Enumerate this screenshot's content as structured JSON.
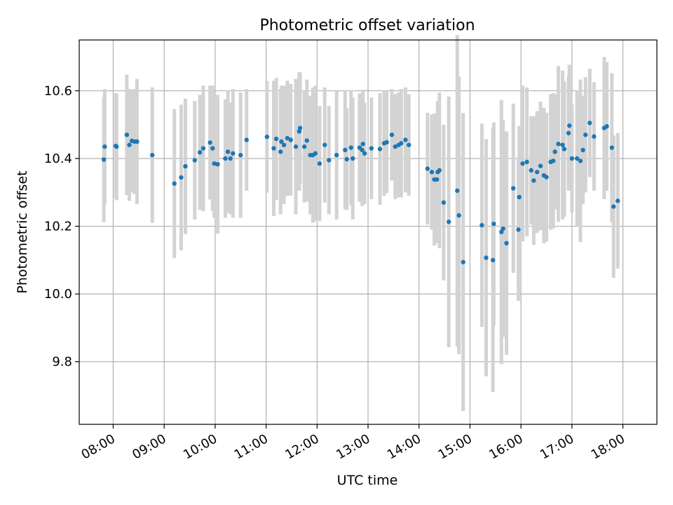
{
  "chart_data": {
    "type": "scatter",
    "title": "Photometric offset variation",
    "xlabel": "UTC time",
    "ylabel": "Photometric offset",
    "x_ticks": [
      "08:00",
      "09:00",
      "10:00",
      "11:00",
      "12:00",
      "13:00",
      "14:00",
      "15:00",
      "16:00",
      "17:00",
      "18:00"
    ],
    "y_ticks": [
      "9.8",
      "10.0",
      "10.2",
      "10.4",
      "10.6"
    ],
    "xlim": [
      "07:20",
      "18:40"
    ],
    "ylim": [
      9.615,
      10.75
    ],
    "grid": true,
    "colors": {
      "points": "#1f77b4",
      "error_bars": "#d3d3d3",
      "grid": "#b0b0b0"
    },
    "series": [
      {
        "x": [
          "07:49",
          "07:50",
          "08:03",
          "08:04",
          "08:16",
          "08:19",
          "08:22",
          "08:25",
          "08:28",
          "08:46",
          "09:12",
          "09:20",
          "09:25",
          "09:36",
          "09:42",
          "09:46",
          "09:54",
          "09:57",
          "09:59",
          "10:03",
          "10:12",
          "10:15",
          "10:18",
          "10:21",
          "10:30",
          "10:37",
          "11:01",
          "11:09",
          "11:12",
          "11:17",
          "11:18",
          "11:21",
          "11:25",
          "11:29",
          "11:35",
          "11:39",
          "11:40",
          "11:45",
          "11:48",
          "11:52",
          "11:55",
          "11:58",
          "12:03",
          "12:09",
          "12:14",
          "12:23",
          "12:33",
          "12:35",
          "12:40",
          "12:42",
          "12:50",
          "12:53",
          "12:54",
          "12:56",
          "13:04",
          "13:14",
          "13:19",
          "13:22",
          "13:28",
          "13:32",
          "13:36",
          "13:39",
          "13:44",
          "13:48",
          "14:10",
          "14:15",
          "14:18",
          "14:21",
          "14:22",
          "14:24",
          "14:29",
          "14:35",
          "14:45",
          "14:47",
          "14:52",
          "15:14",
          "15:19",
          "15:27",
          "15:28",
          "15:37",
          "15:39",
          "15:43",
          "15:51",
          "15:57",
          "15:58",
          "16:02",
          "16:07",
          "16:12",
          "16:15",
          "16:19",
          "16:23",
          "16:27",
          "16:30",
          "16:35",
          "16:38",
          "16:40",
          "16:44",
          "16:49",
          "16:51",
          "16:56",
          "16:57",
          "17:00",
          "17:06",
          "17:10",
          "17:13",
          "17:16",
          "17:21",
          "17:26",
          "17:38",
          "17:41",
          "17:47",
          "17:49",
          "17:54"
        ],
        "y": [
          10.397,
          10.435,
          10.437,
          10.435,
          10.47,
          10.44,
          10.452,
          10.45,
          10.45,
          10.41,
          10.326,
          10.344,
          10.377,
          10.395,
          10.418,
          10.43,
          10.447,
          10.43,
          10.385,
          10.383,
          10.4,
          10.42,
          10.4,
          10.415,
          10.41,
          10.455,
          10.464,
          10.43,
          10.458,
          10.42,
          10.45,
          10.44,
          10.46,
          10.455,
          10.435,
          10.48,
          10.49,
          10.435,
          10.453,
          10.41,
          10.41,
          10.415,
          10.385,
          10.44,
          10.395,
          10.41,
          10.425,
          10.398,
          10.432,
          10.4,
          10.432,
          10.425,
          10.443,
          10.415,
          10.43,
          10.428,
          10.445,
          10.448,
          10.47,
          10.435,
          10.44,
          10.445,
          10.455,
          10.44,
          10.37,
          10.36,
          10.338,
          10.338,
          10.36,
          10.365,
          10.27,
          10.213,
          10.305,
          10.232,
          10.094,
          10.203,
          10.107,
          10.1,
          10.207,
          10.183,
          10.193,
          10.15,
          10.312,
          10.19,
          10.286,
          10.385,
          10.39,
          10.365,
          10.335,
          10.36,
          10.378,
          10.35,
          10.345,
          10.39,
          10.393,
          10.42,
          10.443,
          10.44,
          10.428,
          10.475,
          10.497,
          10.4,
          10.4,
          10.393,
          10.425,
          10.47,
          10.505,
          10.465,
          10.49,
          10.495,
          10.432,
          10.258,
          10.275
        ],
        "yerr": [
          0.185,
          0.17,
          0.155,
          0.158,
          0.178,
          0.165,
          0.152,
          0.155,
          0.185,
          0.2,
          0.22,
          0.215,
          0.2,
          0.175,
          0.17,
          0.185,
          0.168,
          0.185,
          0.16,
          0.205,
          0.175,
          0.18,
          0.165,
          0.19,
          0.185,
          0.15,
          0.165,
          0.2,
          0.18,
          0.185,
          0.165,
          0.175,
          0.17,
          0.165,
          0.2,
          0.175,
          0.165,
          0.165,
          0.18,
          0.175,
          0.2,
          0.2,
          0.17,
          0.17,
          0.16,
          0.19,
          0.175,
          0.15,
          0.17,
          0.18,
          0.16,
          0.165,
          0.16,
          0.15,
          0.15,
          0.165,
          0.155,
          0.15,
          0.135,
          0.155,
          0.155,
          0.16,
          0.155,
          0.15,
          0.165,
          0.17,
          0.195,
          0.185,
          0.21,
          0.23,
          0.23,
          0.37,
          0.46,
          0.41,
          0.44,
          0.3,
          0.35,
          0.39,
          0.3,
          0.39,
          0.32,
          0.33,
          0.25,
          0.21,
          0.21,
          0.23,
          0.22,
          0.16,
          0.19,
          0.18,
          0.19,
          0.2,
          0.19,
          0.2,
          0.2,
          0.17,
          0.23,
          0.22,
          0.2,
          0.17,
          0.18,
          0.16,
          0.2,
          0.24,
          0.16,
          0.17,
          0.16,
          0.16,
          0.21,
          0.19,
          0.22,
          0.21,
          0.2
        ]
      }
    ]
  }
}
